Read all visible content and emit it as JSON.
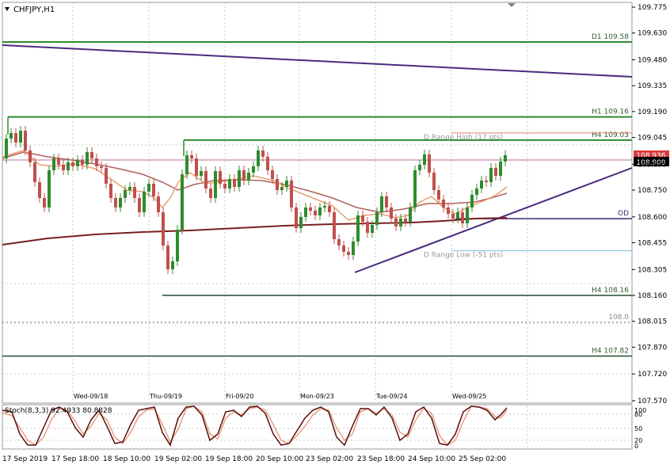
{
  "chart_data": {
    "type": "candlestick",
    "symbol_label": "CHFJPY,H1",
    "price_axis": {
      "ticks": [
        "109.775",
        "109.630",
        "109.480",
        "109.335",
        "109.190",
        "109.045",
        "108.895",
        "108.750",
        "108.600",
        "108.455",
        "108.305",
        "108.160",
        "108.015",
        "107.870",
        "107.720",
        "107.570"
      ],
      "current_bid": "108.909",
      "current_ask": "108.936",
      "range": [
        107.52,
        109.82
      ]
    },
    "day_labels": [
      "Wed-09/18",
      "Thu-09/19",
      "Fri-09/20",
      "Mon-09/23",
      "Tue-09/24",
      "Wed-09/25"
    ],
    "time_labels": [
      "17 Sep 2019",
      "17 Sep 18:00",
      "18 Sep 10:00",
      "19 Sep 02:00",
      "19 Sep 18:00",
      "20 Sep 10:00",
      "23 Sep 02:00",
      "23 Sep 18:00",
      "24 Sep 10:00",
      "25 Sep 02:00"
    ],
    "levels": [
      {
        "label": "D1 109.58",
        "price": 109.58,
        "color": "#2e8b2e"
      },
      {
        "label": "H1 109.16",
        "price": 109.16,
        "color": "#2e8b2e"
      },
      {
        "label": "H4 109.03",
        "price": 109.03,
        "color": "#2e8b2e"
      },
      {
        "label": "D Range High (17 pts)",
        "price": 109.07,
        "color": "#e08070"
      },
      {
        "label": "OD",
        "price": 108.59,
        "color": "#3b2a6e"
      },
      {
        "label": "D Range Low (-51 pts)",
        "price": 108.41,
        "color": "#7fb8d8"
      },
      {
        "label": "H4 108.16",
        "price": 108.16,
        "color": "#1f4f2f"
      },
      {
        "label": "108.0",
        "price": 108.01,
        "color": "#888888"
      },
      {
        "label": "H4 107.82",
        "price": 107.82,
        "color": "#1f4f2f"
      }
    ],
    "stochastic": {
      "label": "Stoch(8,3,3) 92.4933 80.8828",
      "levels": [
        "100",
        "80",
        "50",
        "20",
        "0"
      ]
    }
  }
}
